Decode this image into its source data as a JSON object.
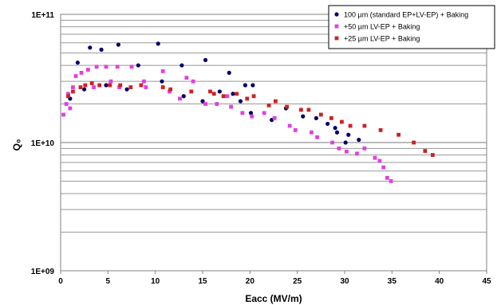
{
  "chart_data": {
    "type": "scatter",
    "xlabel": "Eacc (MV/m)",
    "ylabel": "Q₀",
    "x_range": [
      0,
      45
    ],
    "x_ticks": [
      0,
      5,
      10,
      15,
      20,
      25,
      30,
      35,
      40,
      45
    ],
    "y_scale": "log",
    "y_range": [
      1000000000.0,
      100000000000.0
    ],
    "y_ticks": [
      {
        "value": 1000000000.0,
        "label": "1E+09"
      },
      {
        "value": 10000000000.0,
        "label": "1E+10"
      },
      {
        "value": 100000000000.0,
        "label": "1E+11"
      }
    ],
    "grid": "horizontal minor and major",
    "legend_position": "top-right",
    "series": [
      {
        "name": "100 µm (standard EP+LV-EP) + Baking",
        "color": "#000066",
        "points": [
          [
            1.0,
            22000000000.0
          ],
          [
            1.8,
            42000000000.0
          ],
          [
            2.5,
            26000000000.0
          ],
          [
            3.1,
            55000000000.0
          ],
          [
            4.3,
            53000000000.0
          ],
          [
            4.8,
            28000000000.0
          ],
          [
            6.1,
            58000000000.0
          ],
          [
            7.0,
            26000000000.0
          ],
          [
            8.2,
            40000000000.0
          ],
          [
            10.3,
            59000000000.0
          ],
          [
            10.7,
            30000000000.0
          ],
          [
            12.8,
            40000000000.0
          ],
          [
            13.0,
            23000000000.0
          ],
          [
            15.0,
            21000000000.0
          ],
          [
            15.3,
            44000000000.0
          ],
          [
            16.8,
            25000000000.0
          ],
          [
            17.8,
            35000000000.0
          ],
          [
            18.2,
            24000000000.0
          ],
          [
            19.0,
            21000000000.0
          ],
          [
            19.5,
            28000000000.0
          ],
          [
            20.1,
            17000000000.0
          ],
          [
            20.3,
            28000000000.0
          ],
          [
            22.3,
            15000000000.0
          ],
          [
            23.8,
            18500000000.0
          ],
          [
            25.6,
            16000000000.0
          ],
          [
            27.0,
            15500000000.0
          ],
          [
            28.2,
            14000000000.0
          ],
          [
            29.0,
            13000000000.0
          ],
          [
            29.2,
            12000000000.0
          ],
          [
            30.1,
            10000000000.0
          ],
          [
            30.4,
            11500000000.0
          ],
          [
            31.5,
            10500000000.0
          ]
        ]
      },
      {
        "name": "+50 µm LV-EP + Baking",
        "color": "#e040e0",
        "points": [
          [
            0.3,
            16500000000.0
          ],
          [
            0.6,
            20000000000.0
          ],
          [
            0.8,
            24000000000.0
          ],
          [
            1.0,
            18500000000.0
          ],
          [
            1.3,
            27000000000.0
          ],
          [
            1.6,
            33000000000.0
          ],
          [
            2.2,
            35000000000.0
          ],
          [
            2.9,
            37000000000.0
          ],
          [
            3.5,
            27000000000.0
          ],
          [
            3.8,
            39000000000.0
          ],
          [
            4.8,
            39000000000.0
          ],
          [
            5.3,
            30000000000.0
          ],
          [
            6.0,
            39000000000.0
          ],
          [
            6.2,
            27000000000.0
          ],
          [
            7.5,
            39000000000.0
          ],
          [
            8.8,
            30000000000.0
          ],
          [
            9.0,
            27000000000.0
          ],
          [
            10.8,
            36000000000.0
          ],
          [
            11.5,
            25000000000.0
          ],
          [
            12.6,
            22000000000.0
          ],
          [
            13.3,
            32000000000.0
          ],
          [
            14.0,
            30000000000.0
          ],
          [
            15.3,
            20000000000.0
          ],
          [
            16.5,
            20000000000.0
          ],
          [
            17.6,
            23000000000.0
          ],
          [
            18.0,
            19000000000.0
          ],
          [
            19.2,
            17000000000.0
          ],
          [
            20.2,
            16000000000.0
          ],
          [
            21.5,
            17000000000.0
          ],
          [
            22.6,
            15500000000.0
          ],
          [
            24.2,
            13500000000.0
          ],
          [
            24.8,
            12500000000.0
          ],
          [
            26.5,
            12000000000.0
          ],
          [
            27.1,
            11000000000.0
          ],
          [
            28.7,
            10000000000.0
          ],
          [
            29.4,
            9000000000.0
          ],
          [
            30.2,
            8500000000.0
          ],
          [
            31.3,
            8200000000.0
          ],
          [
            32.1,
            9000000000.0
          ],
          [
            33.2,
            7600000000.0
          ],
          [
            33.7,
            7200000000.0
          ],
          [
            34.1,
            6400000000.0
          ],
          [
            34.5,
            5300000000.0
          ],
          [
            34.9,
            5000000000.0
          ]
        ]
      },
      {
        "name": "+25 µm LV-EP + Baking",
        "color": "#cc2222",
        "points": [
          [
            0.8,
            23000000000.0
          ],
          [
            1.3,
            25000000000.0
          ],
          [
            2.1,
            27000000000.0
          ],
          [
            2.6,
            28000000000.0
          ],
          [
            3.3,
            29000000000.0
          ],
          [
            4.1,
            28000000000.0
          ],
          [
            5.2,
            28000000000.0
          ],
          [
            6.3,
            28000000000.0
          ],
          [
            7.4,
            27000000000.0
          ],
          [
            8.5,
            28000000000.0
          ],
          [
            10.8,
            27000000000.0
          ],
          [
            11.6,
            26000000000.0
          ],
          [
            13.8,
            25000000000.0
          ],
          [
            15.8,
            25000000000.0
          ],
          [
            16.2,
            24000000000.0
          ],
          [
            17.2,
            23000000000.0
          ],
          [
            18.6,
            24000000000.0
          ],
          [
            19.7,
            22000000000.0
          ],
          [
            20.4,
            23000000000.0
          ],
          [
            22.0,
            19500000000.0
          ],
          [
            22.7,
            21000000000.0
          ],
          [
            23.9,
            19000000000.0
          ],
          [
            25.4,
            18000000000.0
          ],
          [
            26.2,
            18000000000.0
          ],
          [
            27.5,
            16500000000.0
          ],
          [
            28.6,
            15500000000.0
          ],
          [
            29.7,
            14500000000.0
          ],
          [
            30.6,
            13500000000.0
          ],
          [
            32.1,
            13500000000.0
          ],
          [
            33.8,
            12500000000.0
          ],
          [
            35.7,
            11500000000.0
          ],
          [
            37.3,
            10000000000.0
          ],
          [
            38.5,
            8600000000.0
          ],
          [
            39.3,
            8000000000.0
          ]
        ]
      }
    ]
  }
}
